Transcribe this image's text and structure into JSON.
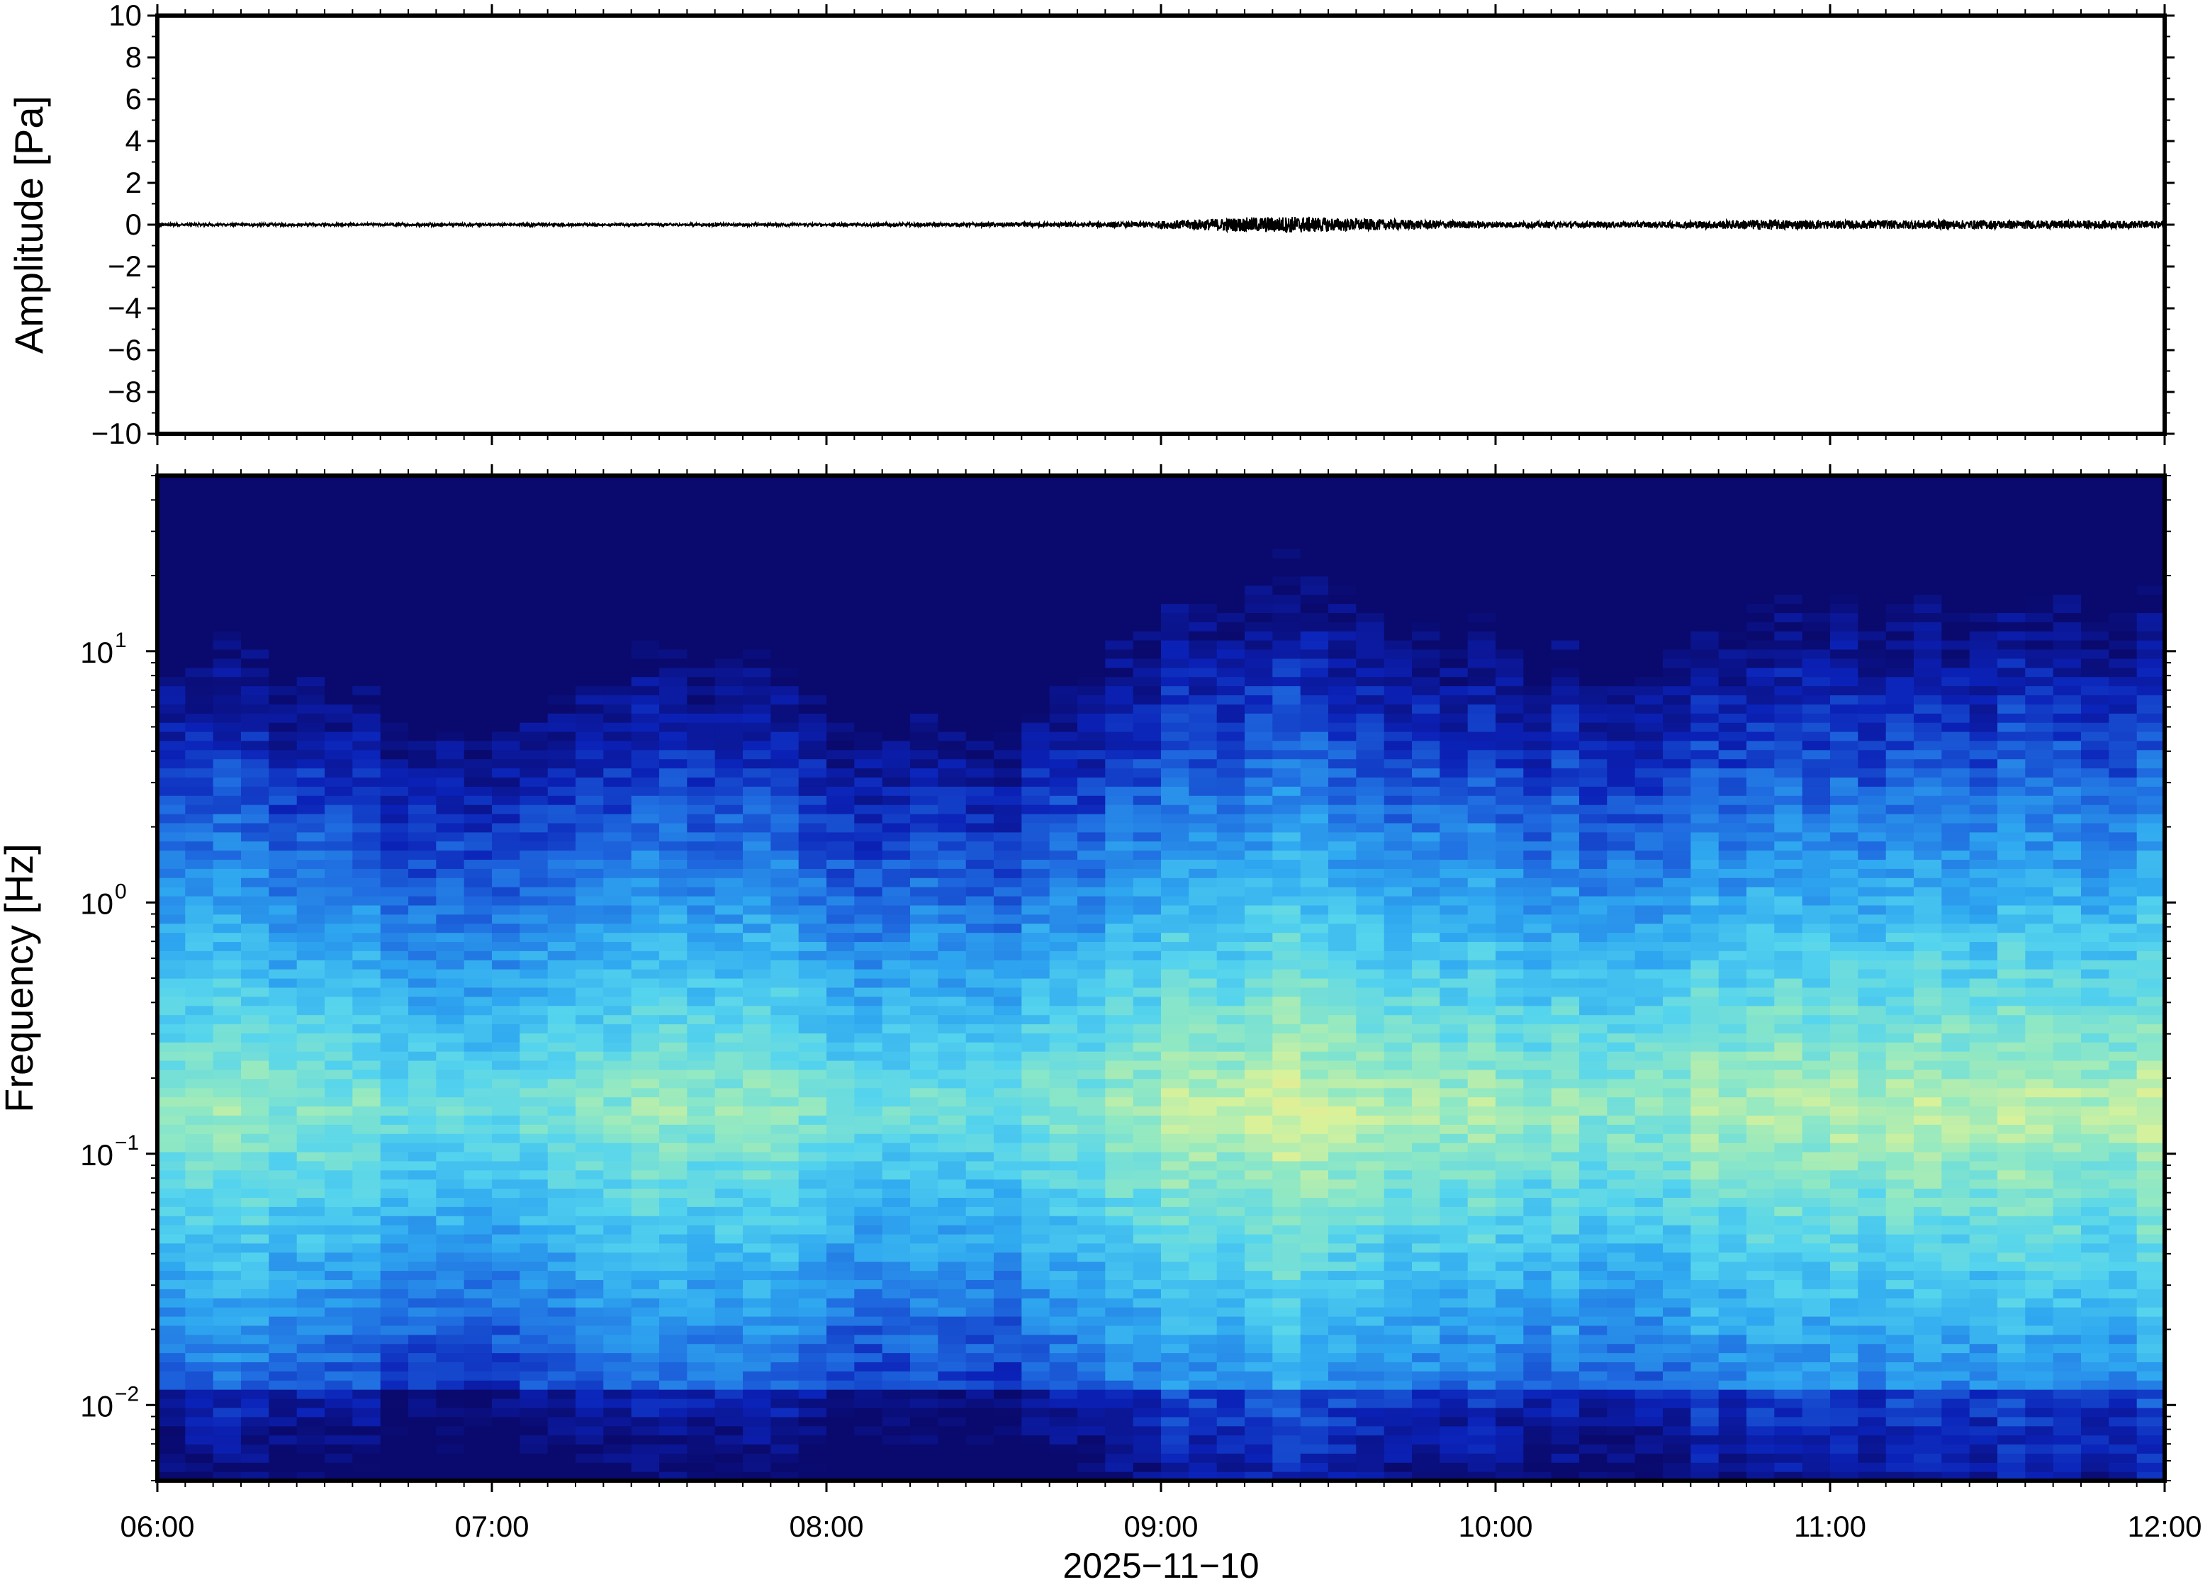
{
  "chart_data": [
    {
      "type": "line",
      "panel": "waveform",
      "ylabel": "Amplitude [Pa]",
      "ylim": [
        -10,
        10
      ],
      "yticks": [
        10,
        8,
        6,
        4,
        2,
        0,
        -2,
        -4,
        -6,
        -8,
        -10
      ],
      "ytick_labels": [
        "10",
        "8",
        "6",
        "4",
        "2",
        "0",
        "−2",
        "−4",
        "−6",
        "−8",
        "−10"
      ],
      "x_range": [
        "06:00",
        "12:00"
      ],
      "series": [
        {
          "x_hours": [
            6.0,
            7.0,
            8.0,
            8.9,
            9.1,
            9.25,
            9.4,
            9.6,
            10.0,
            10.5,
            10.8,
            11.0,
            11.3,
            12.0
          ],
          "envelope_pa": [
            0.06,
            0.06,
            0.07,
            0.12,
            0.25,
            0.35,
            0.4,
            0.28,
            0.15,
            0.15,
            0.25,
            0.2,
            0.22,
            0.18
          ]
        }
      ],
      "color": "#000000"
    },
    {
      "type": "heatmap",
      "panel": "spectrogram",
      "ylabel": "Frequency [Hz]",
      "yscale": "log",
      "ylim_hz": [
        0.005,
        50
      ],
      "yticks_hz": [
        0.01,
        0.1,
        1,
        10
      ],
      "ytick_labels": [
        {
          "base": "10",
          "exp": "−2"
        },
        {
          "base": "10",
          "exp": "−1"
        },
        {
          "base": "10",
          "exp": "0"
        },
        {
          "base": "10",
          "exp": "1"
        }
      ],
      "x_range": [
        "06:00",
        "12:00"
      ],
      "colormap": [
        "#0a0a6e",
        "#0b22b8",
        "#1f6be0",
        "#2fa8f0",
        "#55d4ee",
        "#8fe8c4",
        "#d9f29a",
        "#f7df86",
        "#f7a35a"
      ],
      "time_activity": [
        {
          "hour": 6.0,
          "level": 0.55
        },
        {
          "hour": 6.4,
          "level": 0.5
        },
        {
          "hour": 6.9,
          "level": 0.3
        },
        {
          "hour": 7.1,
          "level": 0.35
        },
        {
          "hour": 7.5,
          "level": 0.5
        },
        {
          "hour": 7.9,
          "level": 0.45
        },
        {
          "hour": 8.2,
          "level": 0.3
        },
        {
          "hour": 8.5,
          "level": 0.25
        },
        {
          "hour": 8.7,
          "level": 0.45
        },
        {
          "hour": 9.0,
          "level": 0.7
        },
        {
          "hour": 9.3,
          "level": 0.85
        },
        {
          "hour": 9.6,
          "level": 0.75
        },
        {
          "hour": 10.0,
          "level": 0.6
        },
        {
          "hour": 10.4,
          "level": 0.55
        },
        {
          "hour": 10.8,
          "level": 0.7
        },
        {
          "hour": 11.3,
          "level": 0.7
        },
        {
          "hour": 12.0,
          "level": 0.75
        }
      ]
    }
  ],
  "xaxis": {
    "tick_labels": [
      "06:00",
      "07:00",
      "08:00",
      "09:00",
      "10:00",
      "11:00",
      "12:00"
    ],
    "date_label": "2025−11−10"
  }
}
